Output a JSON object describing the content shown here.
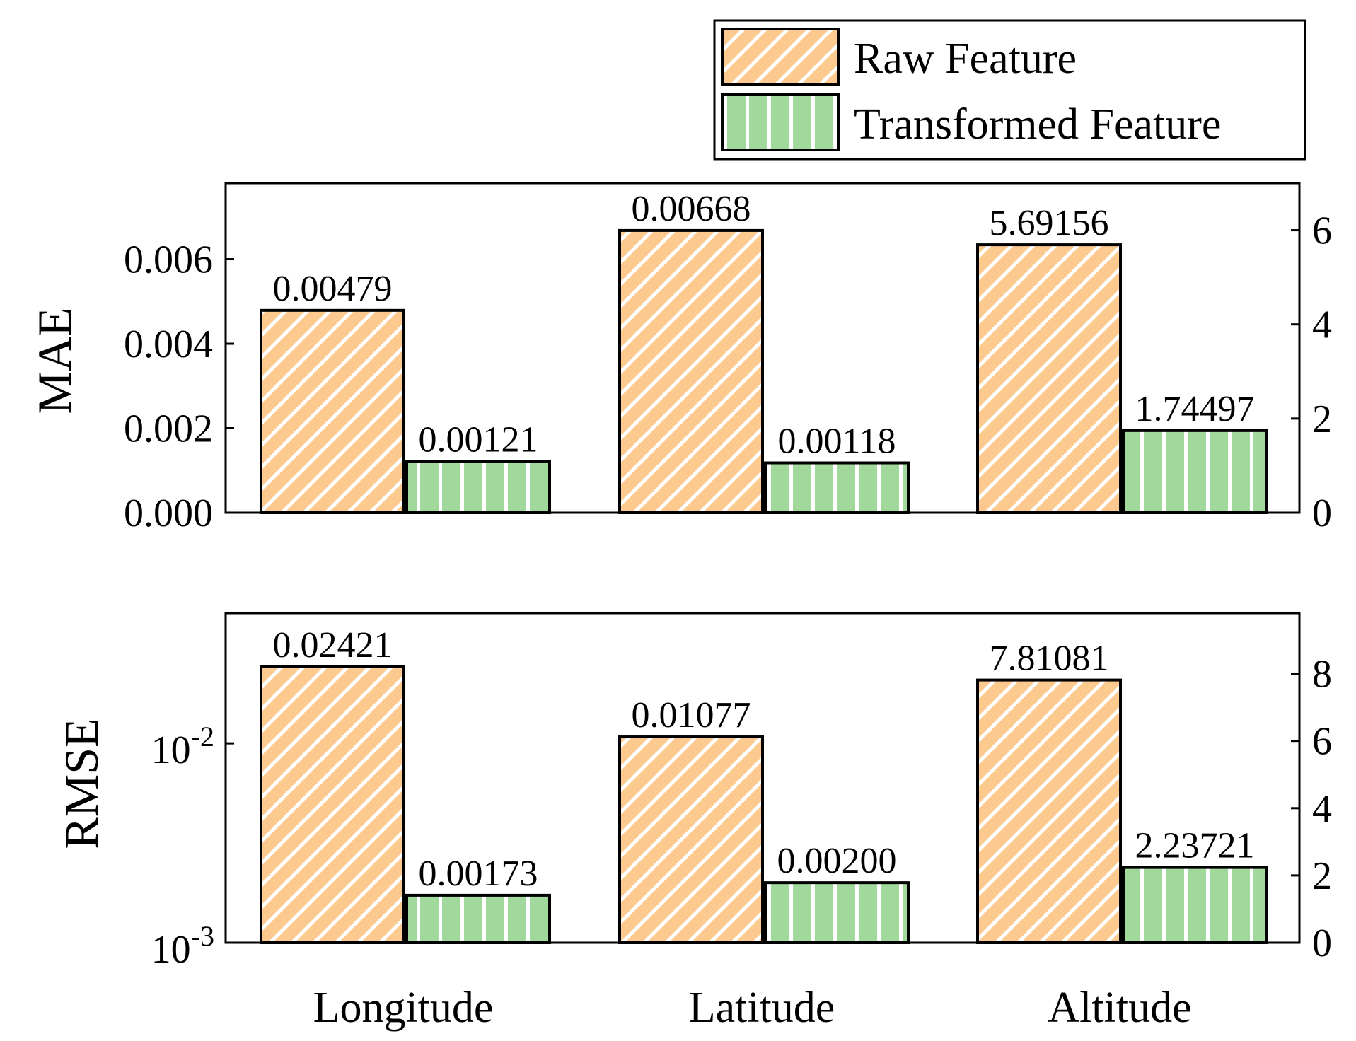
{
  "colors": {
    "raw": "#fcc98f",
    "transformed": "#a0d99b",
    "hatch": "#ffffff",
    "stroke": "#000000"
  },
  "legend": {
    "items": [
      {
        "label": "Raw Feature",
        "color": "#fcc98f",
        "hatch": "diagonal"
      },
      {
        "label": "Transformed Feature",
        "color": "#a0d99b",
        "hatch": "vertical"
      }
    ]
  },
  "chart_data": [
    {
      "type": "bar",
      "title": "",
      "xlabel": "",
      "ylabel": "MAE",
      "categories": [
        "Longitude",
        "Latitude",
        "Altitude"
      ],
      "series": [
        {
          "name": "Raw Feature",
          "values": [
            0.00479,
            0.00668,
            5.69156
          ],
          "labels": [
            "0.00479",
            "0.00668",
            "5.69156"
          ]
        },
        {
          "name": "Transformed Feature",
          "values": [
            0.00121,
            0.00118,
            1.74497
          ],
          "labels": [
            "0.00121",
            "0.00118",
            "1.74497"
          ]
        }
      ],
      "left_axis": {
        "scale": "linear",
        "ylim": [
          0,
          0.0078
        ],
        "ticks": [
          0,
          0.002,
          0.004,
          0.006
        ],
        "tick_labels": [
          "0.000",
          "0.002",
          "0.004",
          "0.006"
        ],
        "applies_to": [
          "Longitude",
          "Latitude"
        ]
      },
      "right_axis": {
        "scale": "linear",
        "ylim": [
          0,
          7.0
        ],
        "ticks": [
          0,
          2,
          4,
          6
        ],
        "tick_labels": [
          "0",
          "2",
          "4",
          "6"
        ],
        "applies_to": [
          "Altitude"
        ]
      }
    },
    {
      "type": "bar",
      "title": "",
      "xlabel": "",
      "ylabel": "RMSE",
      "categories": [
        "Longitude",
        "Latitude",
        "Altitude"
      ],
      "series": [
        {
          "name": "Raw Feature",
          "values": [
            0.02421,
            0.01077,
            7.81081
          ],
          "labels": [
            "0.02421",
            "0.01077",
            "7.81081"
          ]
        },
        {
          "name": "Transformed Feature",
          "values": [
            0.00173,
            0.002,
            2.23721
          ],
          "labels": [
            "0.00173",
            "0.00200",
            "2.23721"
          ]
        }
      ],
      "left_axis": {
        "scale": "log",
        "ylim": [
          0.001,
          0.045
        ],
        "ticks": [
          0.001,
          0.01
        ],
        "tick_labels": [
          {
            "base": "10",
            "exp": "-3"
          },
          {
            "base": "10",
            "exp": "-2"
          }
        ],
        "applies_to": [
          "Longitude",
          "Latitude"
        ]
      },
      "right_axis": {
        "scale": "linear",
        "ylim": [
          0,
          9.8
        ],
        "ticks": [
          0,
          2,
          4,
          6,
          8
        ],
        "tick_labels": [
          "0",
          "2",
          "4",
          "6",
          "8"
        ],
        "applies_to": [
          "Altitude"
        ]
      }
    }
  ]
}
